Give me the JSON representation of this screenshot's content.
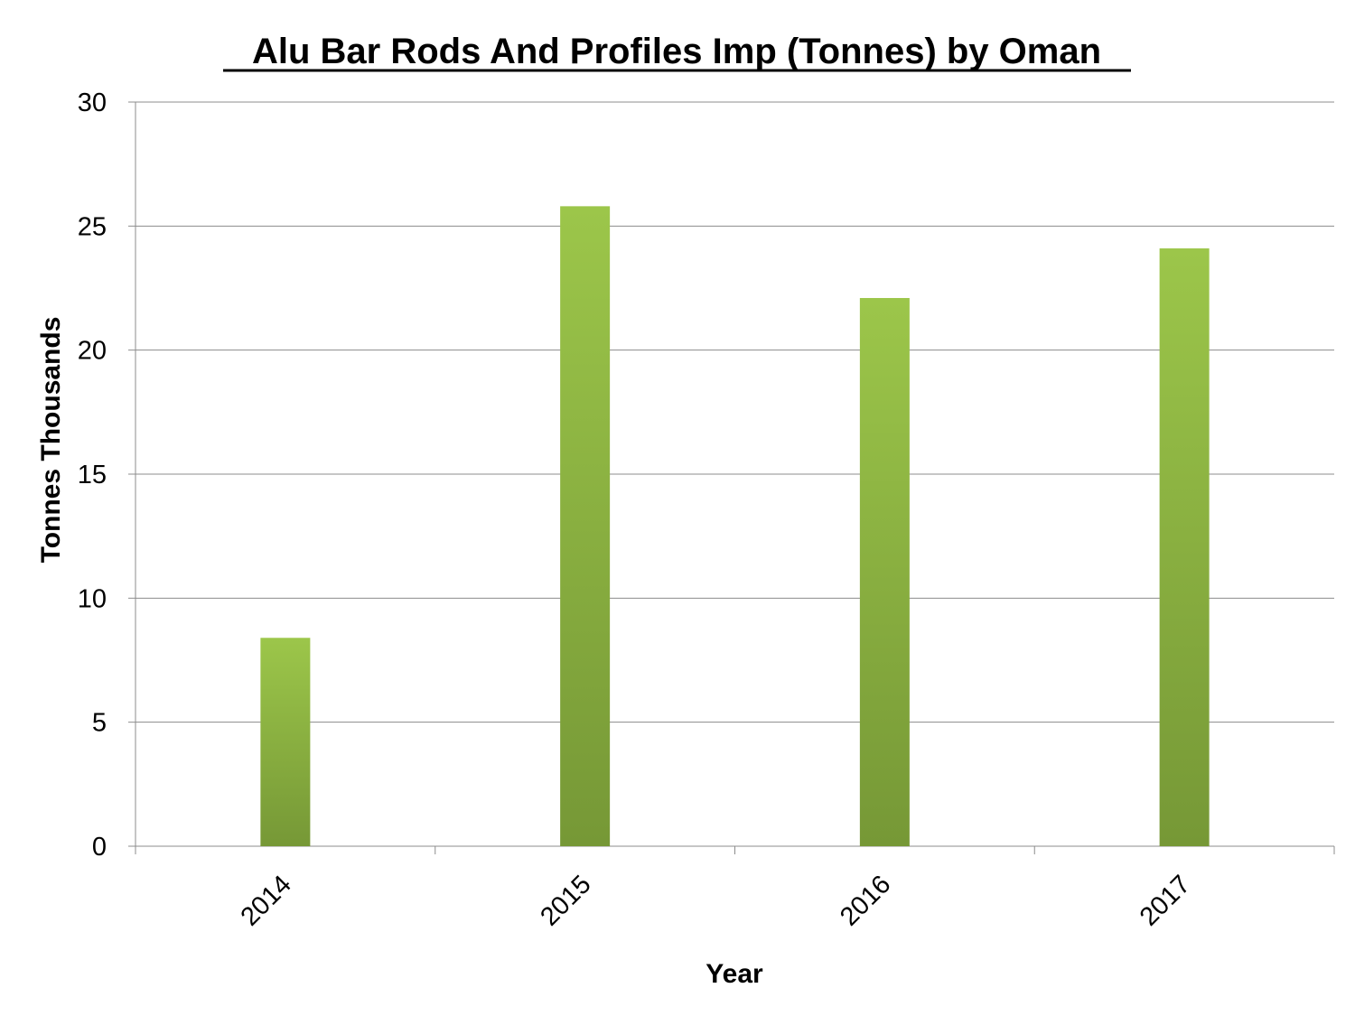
{
  "chart_data": {
    "type": "bar",
    "title": "Alu Bar Rods And Profiles Imp (Tonnes) by Oman",
    "xlabel": "Year",
    "ylabel": "Tonnes Thousands",
    "categories": [
      "2014",
      "2015",
      "2016",
      "2017"
    ],
    "values": [
      8.4,
      25.8,
      22.1,
      24.1
    ],
    "ylim": [
      0,
      30
    ],
    "yticks": [
      0,
      5,
      10,
      15,
      20,
      25,
      30
    ],
    "grid": true,
    "legend": "none",
    "colors": {
      "bar_top": "#9cc64a",
      "bar_bottom": "#769836",
      "grid": "#8c8c8c"
    }
  }
}
